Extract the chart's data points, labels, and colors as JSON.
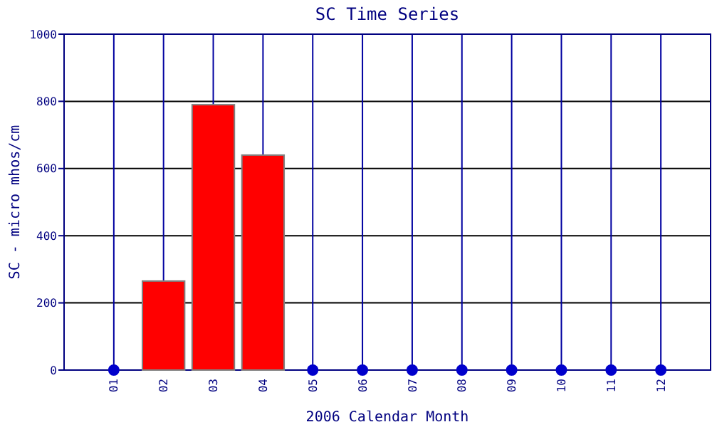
{
  "chart_data": {
    "type": "bar",
    "title": "SC Time Series",
    "xlabel": "2006 Calendar Month",
    "ylabel": "SC - micro mhos/cm",
    "categories": [
      "01",
      "02",
      "03",
      "04",
      "05",
      "06",
      "07",
      "08",
      "09",
      "10",
      "11",
      "12"
    ],
    "series": [
      {
        "color": "#ff0000",
        "values": [
          null,
          265,
          790,
          640,
          null,
          null,
          null,
          null,
          null,
          null,
          null,
          null
        ]
      },
      {
        "type": "scatter",
        "color": "#0000cc",
        "marker": "circle",
        "x": [
          "01",
          "05",
          "06",
          "07",
          "08",
          "09",
          "10",
          "11",
          "12"
        ],
        "values": [
          0,
          0,
          0,
          0,
          0,
          0,
          0,
          0,
          0
        ]
      }
    ],
    "ylim": [
      0,
      1000
    ],
    "yticks": [
      0,
      200,
      400,
      600,
      800,
      1000
    ],
    "grid": true
  }
}
